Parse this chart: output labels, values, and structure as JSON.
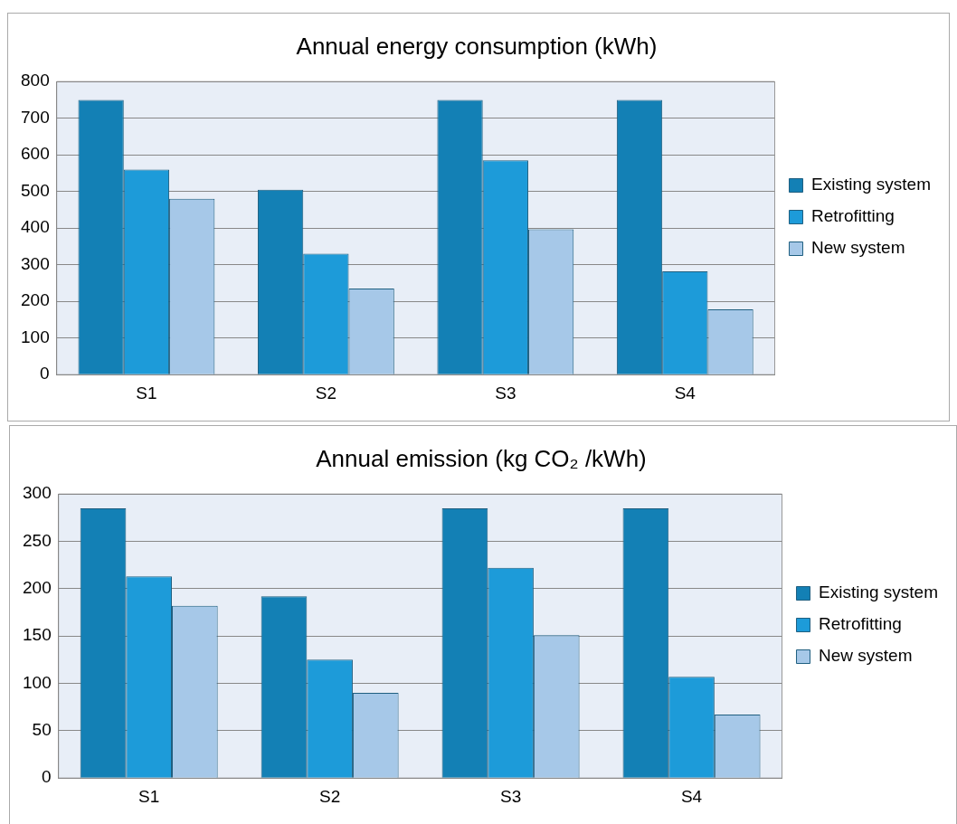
{
  "chart_data": [
    {
      "type": "bar",
      "title": "Annual energy consumption (kWh)",
      "categories": [
        "S1",
        "S2",
        "S3",
        "S4"
      ],
      "series": [
        {
          "name": "Existing system",
          "color": "#1380b5",
          "values": [
            750,
            505,
            750,
            750
          ]
        },
        {
          "name": "Retrofitting",
          "color": "#1d9bd9",
          "values": [
            560,
            330,
            585,
            282
          ]
        },
        {
          "name": "New system",
          "color": "#a6c8e8",
          "values": [
            480,
            235,
            397,
            178
          ]
        }
      ],
      "ylim": [
        0,
        800
      ],
      "yticks": [
        0,
        100,
        200,
        300,
        400,
        500,
        600,
        700,
        800
      ],
      "grid": "y",
      "legend": "right"
    },
    {
      "type": "bar",
      "title": "Annual emission (kg CO₂ /kWh)",
      "categories": [
        "S1",
        "S2",
        "S3",
        "S4"
      ],
      "series": [
        {
          "name": "Existing system",
          "color": "#1380b5",
          "values": [
            285,
            192,
            285,
            285
          ]
        },
        {
          "name": "Retrofitting",
          "color": "#1d9bd9",
          "values": [
            213,
            125,
            222,
            107
          ]
        },
        {
          "name": "New system",
          "color": "#a6c8e8",
          "values": [
            182,
            90,
            151,
            67
          ]
        }
      ],
      "ylim": [
        0,
        300
      ],
      "yticks": [
        0,
        50,
        100,
        150,
        200,
        250,
        300
      ],
      "grid": "y",
      "legend": "right"
    }
  ]
}
